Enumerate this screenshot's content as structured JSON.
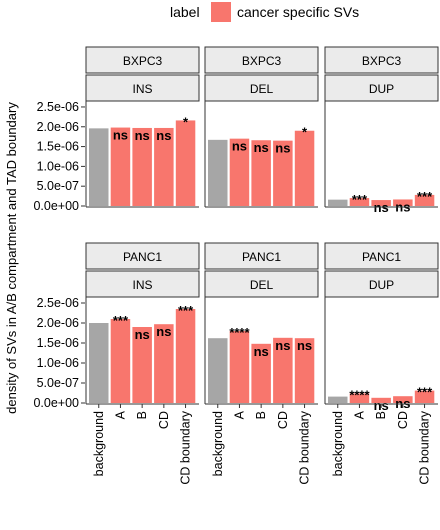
{
  "chart_data": {
    "type": "bar",
    "ylabel": "density of SVs in A/B compartment and TAD boundary",
    "legend": {
      "title": "label",
      "entries": [
        {
          "name": "cancer specific SVs",
          "color": "#F8766D"
        }
      ],
      "position": "top-right"
    },
    "colors": {
      "background": "#A6A6A6",
      "cancer": "#F8766D",
      "strip_fill": "#EBEBEB",
      "strip_border": "#333333"
    },
    "categories": [
      "background",
      "A",
      "B",
      "CD",
      "CD boundary"
    ],
    "yticks": [
      "2.5e-06",
      "2.0e-06",
      "1.5e-06",
      "1.0e-06",
      "5.0e-07",
      "0.0e+00"
    ],
    "ytick_values": [
      2.5e-06,
      2e-06,
      1.5e-06,
      1e-06,
      5e-07,
      0
    ],
    "ylim": [
      0,
      2.6e-06
    ],
    "facet_rows": [
      {
        "cell_line": "BXPC3",
        "panels": [
          {
            "sv_type": "INS",
            "values": [
              1.96e-06,
              1.98e-06,
              1.97e-06,
              1.97e-06,
              2.16e-06
            ],
            "sig": [
              "",
              "ns",
              "ns",
              "ns",
              "*"
            ]
          },
          {
            "sv_type": "DEL",
            "values": [
              1.67e-06,
              1.7e-06,
              1.66e-06,
              1.65e-06,
              1.9e-06
            ],
            "sig": [
              "",
              "ns",
              "ns",
              "ns",
              "*"
            ]
          },
          {
            "sv_type": "DUP",
            "values": [
              1.6e-07,
              2e-07,
              1.5e-07,
              1.65e-07,
              2.8e-07
            ],
            "sig": [
              "",
              "***",
              "ns",
              "ns",
              "***"
            ]
          }
        ]
      },
      {
        "cell_line": "PANC1",
        "panels": [
          {
            "sv_type": "INS",
            "values": [
              2e-06,
              2.1e-06,
              1.9e-06,
              1.97e-06,
              2.35e-06
            ],
            "sig": [
              "",
              "***",
              "ns",
              "ns",
              "***"
            ]
          },
          {
            "sv_type": "DEL",
            "values": [
              1.62e-06,
              1.8e-06,
              1.48e-06,
              1.63e-06,
              1.62e-06
            ],
            "sig": [
              "",
              "****",
              "ns",
              "ns",
              "ns"
            ]
          },
          {
            "sv_type": "DUP",
            "values": [
              1.6e-07,
              2.4e-07,
              1.3e-07,
              1.7e-07,
              3.1e-07
            ],
            "sig": [
              "",
              "****",
              "ns",
              "ns",
              "***"
            ]
          }
        ]
      }
    ]
  }
}
